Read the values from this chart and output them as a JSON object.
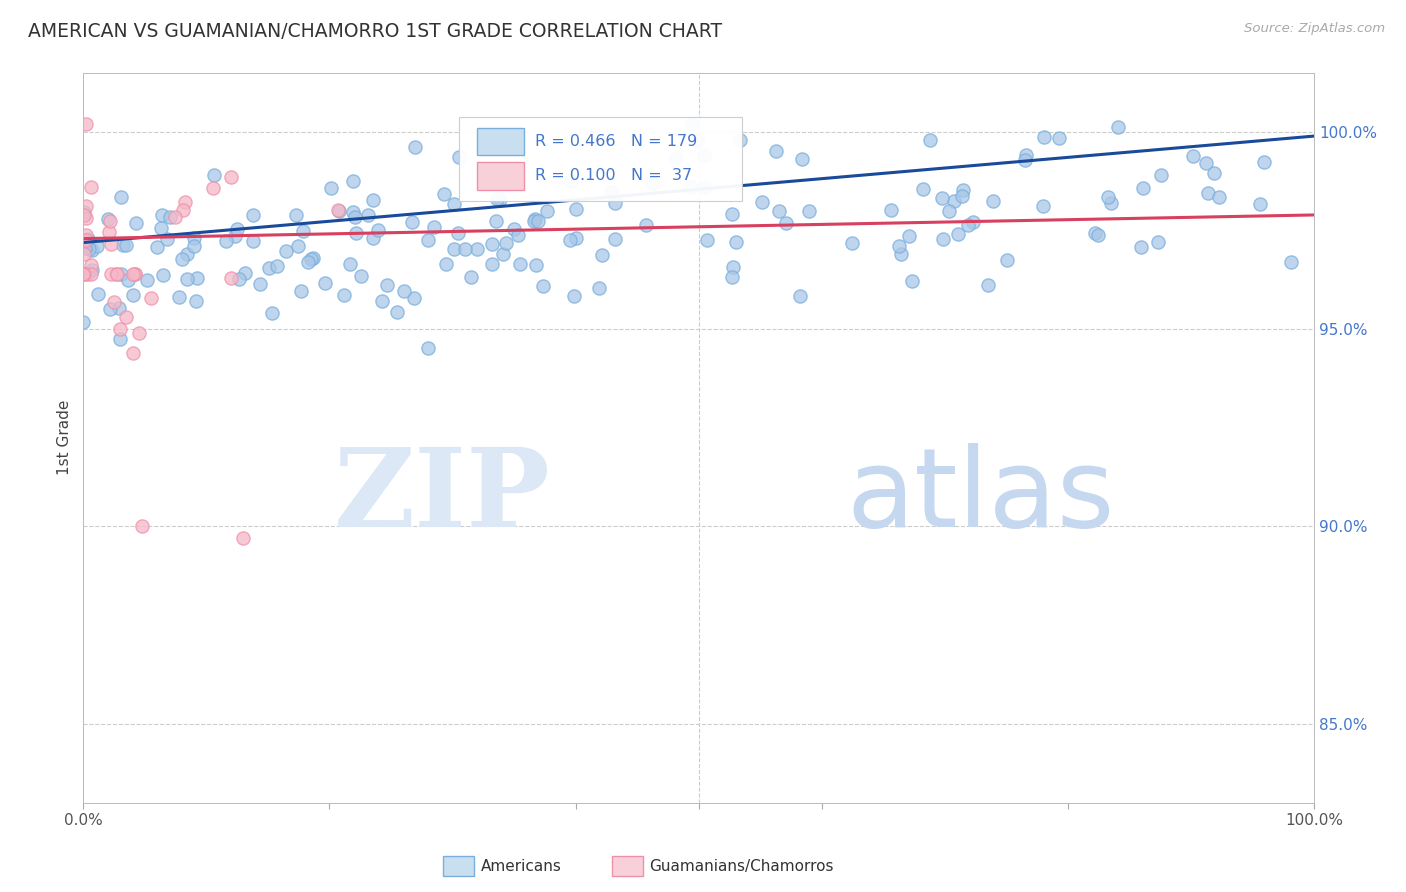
{
  "title": "AMERICAN VS GUAMANIAN/CHAMORRO 1ST GRADE CORRELATION CHART",
  "source": "Source: ZipAtlas.com",
  "legend_blue_label": "Americans",
  "legend_pink_label": "Guamanians/Chamorros",
  "R_blue": 0.466,
  "N_blue": 179,
  "R_pink": 0.1,
  "N_pink": 37,
  "blue_scatter_color": "#a8c8e8",
  "blue_edge_color": "#7aaedc",
  "pink_scatter_color": "#f5b8c8",
  "pink_edge_color": "#f090a8",
  "blue_line_color": "#1a4a9a",
  "pink_line_color": "#d84060",
  "legend_blue_face": "#c8dff0",
  "legend_blue_edge": "#7aaedc",
  "legend_pink_face": "#f8d0da",
  "legend_pink_edge": "#f090a8",
  "watermark_zip_color": "#dce8f5",
  "watermark_atlas_color": "#c5d8ef",
  "background_color": "#ffffff",
  "grid_color": "#cccccc",
  "title_color": "#333333",
  "right_axis_color": "#4477cc",
  "xmin": 0.0,
  "xmax": 1.0,
  "ymin": 0.83,
  "ymax": 1.015,
  "yticks": [
    0.85,
    0.9,
    0.95,
    1.0
  ],
  "ytick_labels": [
    "85.0%",
    "90.0%",
    "95.0%",
    "100.0%"
  ],
  "blue_trend_x0": 0.0,
  "blue_trend_x1": 1.0,
  "blue_trend_y0": 0.972,
  "blue_trend_y1": 0.999,
  "pink_trend_x0": 0.0,
  "pink_trend_x1": 1.0,
  "pink_trend_y0": 0.973,
  "pink_trend_y1": 0.979
}
